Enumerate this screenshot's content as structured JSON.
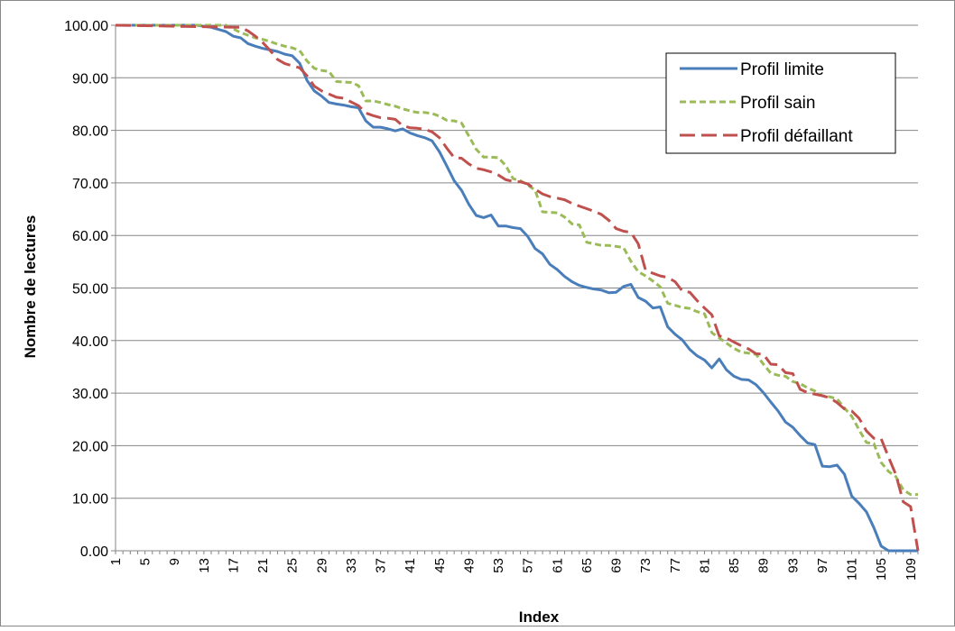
{
  "chart_data": {
    "type": "line",
    "title": "",
    "xlabel": "Index",
    "ylabel": "Nombre de lectures",
    "ylim": [
      0,
      100
    ],
    "y_ticks": [
      "0.00",
      "10.00",
      "20.00",
      "30.00",
      "40.00",
      "50.00",
      "60.00",
      "70.00",
      "80.00",
      "90.00",
      "100.00"
    ],
    "x_tick_labels": [
      "1",
      "5",
      "9",
      "13",
      "17",
      "21",
      "25",
      "29",
      "33",
      "37",
      "41",
      "45",
      "49",
      "53",
      "57",
      "61",
      "65",
      "69",
      "73",
      "77",
      "81",
      "85",
      "89",
      "93",
      "97",
      "101",
      "105",
      "109"
    ],
    "x_range": [
      1,
      110
    ],
    "grid": "horizontal",
    "legend_position": "top-right",
    "series": [
      {
        "name": "Profil limite",
        "color": "#4a7ebb",
        "style": "solid",
        "x": [
          1,
          12,
          14,
          15,
          16,
          17,
          18,
          19,
          20,
          21,
          22,
          23,
          24,
          25,
          26,
          27,
          28,
          29,
          30,
          31,
          32,
          33,
          34,
          35,
          36,
          37,
          38,
          39,
          40,
          41,
          42,
          43,
          44,
          45,
          46,
          47,
          48,
          49,
          50,
          51,
          52,
          53,
          54,
          55,
          56,
          57,
          58,
          59,
          60,
          61,
          62,
          63,
          64,
          65,
          66,
          67,
          68,
          69,
          70,
          71,
          72,
          73,
          74,
          75,
          76,
          77,
          78,
          79,
          80,
          81,
          82,
          83,
          84,
          85,
          86,
          87,
          88,
          89,
          90,
          91,
          92,
          93,
          94,
          95,
          96,
          97,
          98,
          99,
          100,
          101,
          102,
          103,
          104,
          105,
          106,
          107,
          108,
          109,
          110
        ],
        "values": [
          100,
          100,
          99.6,
          99.2,
          98.8,
          97.9,
          97.6,
          96.5,
          96,
          95.6,
          95.3,
          95,
          94.5,
          94.2,
          92.8,
          89.5,
          87.5,
          86.5,
          85.3,
          85,
          84.8,
          84.5,
          84.3,
          81.8,
          80.6,
          80.6,
          80.3,
          79.9,
          80.3,
          79.5,
          79,
          78.6,
          78,
          75.9,
          73.2,
          70.4,
          68.6,
          65.9,
          63.8,
          63.4,
          63.9,
          61.8,
          61.8,
          61.5,
          61.3,
          59.8,
          57.5,
          56.5,
          54.5,
          53.5,
          52.2,
          51.2,
          50.5,
          50.1,
          49.8,
          49.6,
          49.1,
          49.2,
          50.3,
          50.7,
          48.2,
          47.5,
          46.2,
          46.4,
          42.6,
          41.2,
          40.1,
          38.3,
          37.1,
          36.3,
          34.8,
          36.5,
          34.4,
          33.2,
          32.6,
          32.5,
          31.6,
          30.1,
          28.3,
          26.6,
          24.5,
          23.5,
          21.9,
          20.5,
          20.2,
          16.1,
          16,
          16.3,
          14.6,
          10.4,
          9,
          7.4,
          4.4,
          0.9,
          0,
          0,
          0,
          0,
          0
        ]
      },
      {
        "name": "Profil sain",
        "color": "#9bbb59",
        "style": "short-dash",
        "x": [
          1,
          16,
          18,
          19,
          20,
          21,
          22,
          23,
          24,
          25,
          26,
          27,
          28,
          29,
          30,
          31,
          32,
          33,
          34,
          35,
          36,
          37,
          38,
          39,
          40,
          41,
          42,
          43,
          44,
          45,
          46,
          47,
          48,
          49,
          50,
          51,
          52,
          53,
          54,
          55,
          56,
          57,
          58,
          59,
          60,
          61,
          62,
          63,
          64,
          65,
          66,
          67,
          68,
          69,
          70,
          71,
          72,
          73,
          74,
          75,
          76,
          77,
          78,
          79,
          80,
          81,
          82,
          83,
          84,
          85,
          86,
          87,
          88,
          89,
          90,
          91,
          92,
          93,
          94,
          95,
          96,
          97,
          98,
          99,
          100,
          101,
          102,
          103,
          104,
          105,
          106,
          107,
          108,
          109,
          110
        ],
        "values": [
          100,
          100,
          98.6,
          98.1,
          97.6,
          97.3,
          96.9,
          96.4,
          96,
          95.7,
          95.2,
          93.2,
          91.8,
          91.4,
          91.2,
          89.3,
          89.2,
          89.1,
          88.5,
          85.6,
          85.6,
          85.3,
          84.9,
          84.6,
          84.1,
          83.7,
          83.4,
          83.4,
          83.2,
          82.7,
          81.9,
          81.8,
          81.4,
          78.9,
          76.4,
          74.9,
          74.9,
          74.8,
          73.3,
          70.8,
          70.4,
          69.6,
          68.6,
          64.5,
          64.4,
          64.3,
          63.5,
          62.2,
          62,
          58.7,
          58.4,
          58.1,
          58.1,
          57.9,
          57.7,
          55.1,
          53.1,
          52.3,
          51.3,
          50.2,
          47.1,
          46.7,
          46.3,
          46.1,
          45.5,
          45.1,
          41.5,
          40.5,
          39.5,
          38.5,
          37.8,
          37.6,
          37.4,
          35.5,
          33.8,
          33.4,
          33.2,
          32.2,
          31.8,
          31,
          30.4,
          29.5,
          29.3,
          28.9,
          27.2,
          25.6,
          23,
          20.6,
          20.4,
          16.8,
          15.1,
          14.1,
          11.6,
          10.7,
          10.7
        ]
      },
      {
        "name": "Profil défaillant",
        "color": "#c0504d",
        "style": "long-dash",
        "x": [
          1,
          18,
          19,
          20,
          21,
          22,
          23,
          24,
          25,
          26,
          27,
          28,
          29,
          30,
          31,
          32,
          33,
          34,
          35,
          36,
          37,
          38,
          39,
          40,
          41,
          42,
          43,
          44,
          45,
          46,
          47,
          48,
          49,
          50,
          51,
          52,
          53,
          54,
          55,
          56,
          57,
          58,
          59,
          60,
          61,
          62,
          63,
          64,
          65,
          66,
          67,
          68,
          69,
          70,
          71,
          72,
          73,
          74,
          75,
          76,
          77,
          78,
          79,
          80,
          81,
          82,
          83,
          84,
          85,
          86,
          87,
          88,
          89,
          90,
          91,
          92,
          93,
          94,
          95,
          96,
          97,
          98,
          99,
          100,
          101,
          102,
          103,
          104,
          105,
          106,
          107,
          108,
          109,
          110
        ],
        "values": [
          100,
          99.6,
          98.9,
          97.9,
          96.7,
          95.2,
          93.5,
          92.7,
          92.3,
          91.9,
          90.4,
          88.4,
          87.5,
          86.9,
          86.3,
          86.1,
          85.4,
          84.7,
          83.3,
          82.8,
          82.4,
          82.3,
          82.1,
          80.9,
          80.5,
          80.4,
          80.2,
          79.7,
          78.6,
          76.6,
          74.8,
          74.7,
          73.6,
          72.8,
          72.5,
          72.1,
          71.5,
          70.6,
          70.3,
          70.2,
          69.8,
          68.8,
          67.9,
          67.4,
          67.1,
          66.8,
          66.1,
          65.6,
          65.1,
          64.6,
          64,
          62.9,
          61.3,
          60.8,
          60.6,
          58.4,
          53.4,
          52.8,
          52.3,
          52,
          51.2,
          49.4,
          49.2,
          47.6,
          46.2,
          44.9,
          40.9,
          40.5,
          39.7,
          39,
          38.4,
          37.5,
          37.4,
          35.5,
          35.4,
          33.9,
          33.7,
          30.7,
          30.1,
          29.8,
          29.5,
          29.1,
          28.2,
          27,
          26.6,
          25.2,
          22.8,
          21.4,
          21.3,
          17.8,
          14.5,
          9.3,
          8.4,
          0
        ]
      }
    ]
  }
}
